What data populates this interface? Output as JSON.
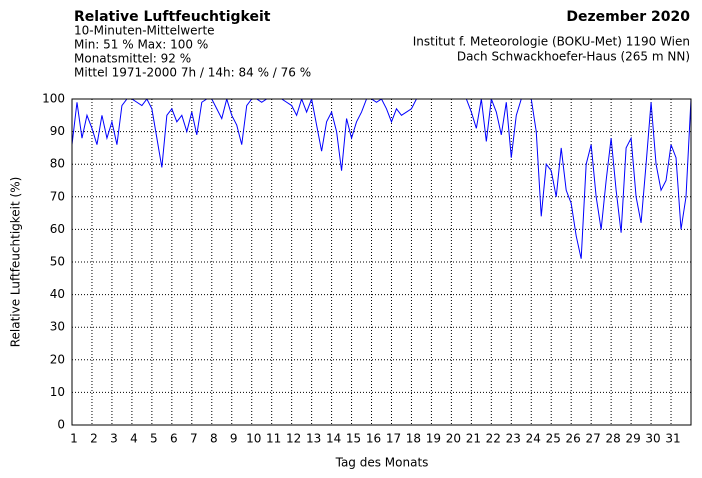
{
  "chart_data": {
    "type": "line",
    "title": "Relative Luftfeuchtigkeit",
    "subtitle": "10-Minuten-Mittelwerte",
    "stats": [
      "Min:  51 %   Max: 100 %",
      "Monatsmittel:  92 %",
      "Mittel 1971-2000 7h / 14h:  84 % / 76 %"
    ],
    "period": "Dezember 2020",
    "source": [
      "Institut f. Meteorologie (BOKU-Met) 1190 Wien",
      "Dach Schwackhoefer-Haus (265 m NN)"
    ],
    "x_label": "Tag des Monats",
    "y_label": "Relative Luftfeuchtigkeit (%)",
    "xlim": [
      1,
      32
    ],
    "xticks": [
      1,
      2,
      3,
      4,
      5,
      6,
      7,
      8,
      9,
      10,
      11,
      12,
      13,
      14,
      15,
      16,
      17,
      18,
      19,
      20,
      21,
      22,
      23,
      24,
      25,
      26,
      27,
      28,
      29,
      30,
      31
    ],
    "ylim": [
      0,
      100
    ],
    "yticks": [
      0,
      10,
      20,
      30,
      40,
      50,
      60,
      70,
      80,
      90,
      100
    ],
    "grid": true,
    "x": [
      1,
      1.25,
      1.5,
      1.75,
      2,
      2.25,
      2.5,
      2.75,
      3,
      3.25,
      3.5,
      3.75,
      4,
      4.25,
      4.5,
      4.75,
      5,
      5.25,
      5.5,
      5.75,
      6,
      6.25,
      6.5,
      6.75,
      7,
      7.25,
      7.5,
      7.75,
      8,
      8.25,
      8.5,
      8.75,
      9,
      9.25,
      9.5,
      9.75,
      10,
      10.25,
      10.5,
      10.75,
      11,
      11.25,
      11.5,
      11.75,
      12,
      12.25,
      12.5,
      12.75,
      13,
      13.25,
      13.5,
      13.75,
      14,
      14.25,
      14.5,
      14.75,
      15,
      15.25,
      15.5,
      15.75,
      16,
      16.25,
      16.5,
      16.75,
      17,
      17.25,
      17.5,
      17.75,
      18,
      18.25,
      18.5,
      18.75,
      19,
      19.25,
      19.5,
      19.75,
      20,
      20.25,
      20.5,
      20.75,
      21,
      21.25,
      21.5,
      21.75,
      22,
      22.25,
      22.5,
      22.75,
      23,
      23.25,
      23.5,
      23.75,
      24,
      24.25,
      24.5,
      24.75,
      25,
      25.25,
      25.5,
      25.75,
      26,
      26.25,
      26.5,
      26.75,
      27,
      27.25,
      27.5,
      27.75,
      28,
      28.25,
      28.5,
      28.75,
      29,
      29.25,
      29.5,
      29.75,
      30,
      30.25,
      30.5,
      30.75,
      31,
      31.25,
      31.5,
      31.75,
      32
    ],
    "series": [
      {
        "name": "Relative Luftfeuchtigkeit",
        "color": "#0000ff",
        "values": [
          86,
          99,
          88,
          95,
          91,
          86,
          95,
          88,
          93,
          86,
          98,
          100,
          100,
          99,
          98,
          100,
          97,
          88,
          79,
          95,
          97,
          93,
          95,
          90,
          96,
          89,
          99,
          100,
          100,
          97,
          94,
          100,
          95,
          92,
          86,
          98,
          100,
          100,
          99,
          100,
          100,
          100,
          100,
          99,
          98,
          95,
          100,
          96,
          100,
          92,
          84,
          93,
          96,
          90,
          78,
          94,
          88,
          93,
          96,
          100,
          100,
          99,
          100,
          97,
          93,
          97,
          95,
          96,
          97,
          100,
          100,
          100,
          100,
          100,
          100,
          100,
          100,
          100,
          100,
          100,
          96,
          91,
          100,
          87,
          100,
          96,
          89,
          99,
          82,
          95,
          100,
          100,
          100,
          90,
          64,
          80,
          78,
          70,
          85,
          72,
          68,
          58,
          51,
          80,
          86,
          70,
          60,
          75,
          88,
          72,
          59,
          85,
          88,
          70,
          62,
          80,
          99,
          80,
          72,
          75,
          86,
          82,
          60,
          70,
          100
        ]
      }
    ]
  }
}
